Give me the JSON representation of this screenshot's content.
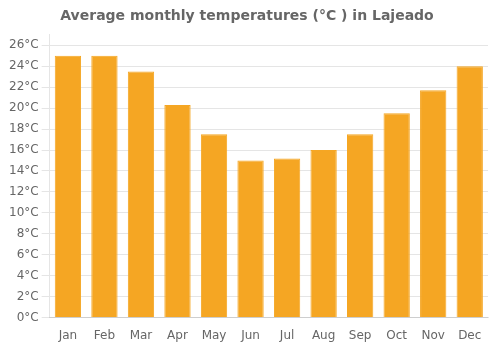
{
  "chart_data": {
    "type": "bar",
    "title": "Average monthly temperatures (°C ) in Lajeado",
    "categories": [
      "Jan",
      "Feb",
      "Mar",
      "Apr",
      "May",
      "Jun",
      "Jul",
      "Aug",
      "Sep",
      "Oct",
      "Nov",
      "Dec"
    ],
    "values": [
      25.0,
      25.0,
      23.5,
      20.3,
      17.5,
      15.0,
      15.2,
      16.0,
      17.5,
      19.5,
      21.7,
      24.0
    ],
    "color": "#F5A623",
    "ylim": [
      0,
      27
    ],
    "yticks": [
      {
        "value": 0,
        "label": "0°C"
      },
      {
        "value": 2,
        "label": "2°C"
      },
      {
        "value": 4,
        "label": "4°C"
      },
      {
        "value": 6,
        "label": "6°C"
      },
      {
        "value": 8,
        "label": "8°C"
      },
      {
        "value": 10,
        "label": "10°C"
      },
      {
        "value": 12,
        "label": "12°C"
      },
      {
        "value": 14,
        "label": "14°C"
      },
      {
        "value": 16,
        "label": "16°C"
      },
      {
        "value": 18,
        "label": "18°C"
      },
      {
        "value": 20,
        "label": "20°C"
      },
      {
        "value": 22,
        "label": "22°C"
      },
      {
        "value": 24,
        "label": "24°C"
      },
      {
        "value": 26,
        "label": "26°C"
      }
    ],
    "grid": true
  }
}
